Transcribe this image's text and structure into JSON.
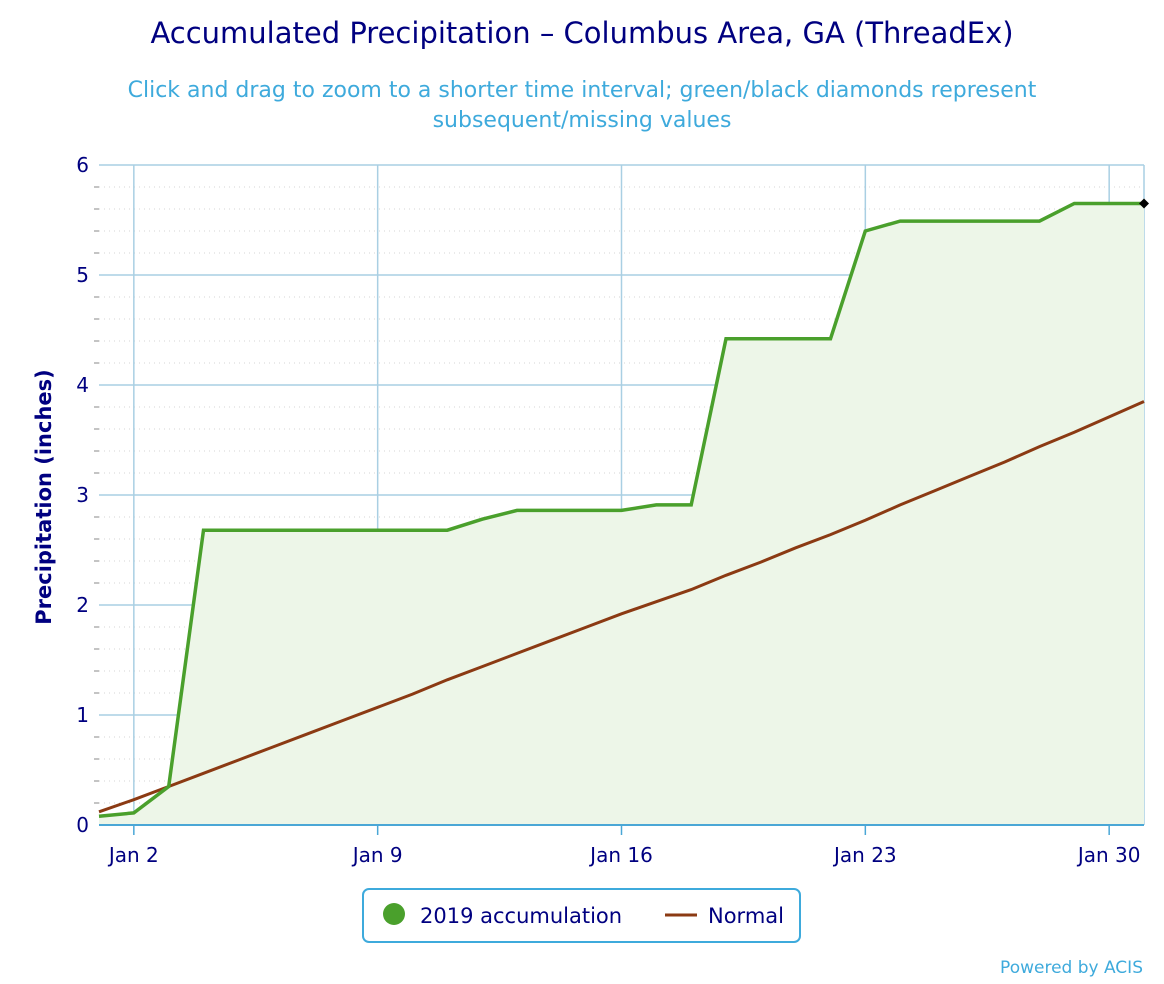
{
  "chart_data": {
    "type": "line",
    "title": "Accumulated Precipitation – Columbus Area, GA (ThreadEx)",
    "subtitle_lines": [
      "Click and drag to zoom to a shorter time interval; green/black diamonds represent",
      "subsequent/missing values"
    ],
    "ylabel": "Precipitation (inches)",
    "xlabel": "",
    "ylim": [
      0,
      6
    ],
    "yticks": [
      0,
      1,
      2,
      3,
      4,
      5,
      6
    ],
    "x_date_range": [
      "2019-01-01",
      "2019-01-31"
    ],
    "xticks": [
      {
        "date": "2019-01-02",
        "label": "Jan 2"
      },
      {
        "date": "2019-01-09",
        "label": "Jan 9"
      },
      {
        "date": "2019-01-16",
        "label": "Jan 16"
      },
      {
        "date": "2019-01-23",
        "label": "Jan 23"
      },
      {
        "date": "2019-01-30",
        "label": "Jan 30"
      }
    ],
    "grid": true,
    "legend_placement": "bottom-center",
    "series": [
      {
        "name": "2019 accumulation",
        "color": "#4aa02c",
        "fill": "#edf6e8",
        "x": [
          "2019-01-01",
          "2019-01-02",
          "2019-01-03",
          "2019-01-04",
          "2019-01-05",
          "2019-01-06",
          "2019-01-07",
          "2019-01-08",
          "2019-01-09",
          "2019-01-10",
          "2019-01-11",
          "2019-01-12",
          "2019-01-13",
          "2019-01-14",
          "2019-01-15",
          "2019-01-16",
          "2019-01-17",
          "2019-01-18",
          "2019-01-19",
          "2019-01-20",
          "2019-01-21",
          "2019-01-22",
          "2019-01-23",
          "2019-01-24",
          "2019-01-25",
          "2019-01-26",
          "2019-01-27",
          "2019-01-28",
          "2019-01-29",
          "2019-01-30",
          "2019-01-31"
        ],
        "values": [
          0.08,
          0.11,
          0.35,
          2.68,
          2.68,
          2.68,
          2.68,
          2.68,
          2.68,
          2.68,
          2.68,
          2.78,
          2.86,
          2.86,
          2.86,
          2.86,
          2.91,
          2.91,
          4.42,
          4.42,
          4.42,
          4.42,
          5.4,
          5.49,
          5.49,
          5.49,
          5.49,
          5.49,
          5.65,
          5.65,
          5.65
        ]
      },
      {
        "name": "Normal",
        "color": "#8b3a13",
        "x": [
          "2019-01-01",
          "2019-01-02",
          "2019-01-03",
          "2019-01-04",
          "2019-01-05",
          "2019-01-06",
          "2019-01-07",
          "2019-01-08",
          "2019-01-09",
          "2019-01-10",
          "2019-01-11",
          "2019-01-12",
          "2019-01-13",
          "2019-01-14",
          "2019-01-15",
          "2019-01-16",
          "2019-01-17",
          "2019-01-18",
          "2019-01-19",
          "2019-01-20",
          "2019-01-21",
          "2019-01-22",
          "2019-01-23",
          "2019-01-24",
          "2019-01-25",
          "2019-01-26",
          "2019-01-27",
          "2019-01-28",
          "2019-01-29",
          "2019-01-30",
          "2019-01-31"
        ],
        "values": [
          0.12,
          0.23,
          0.35,
          0.47,
          0.59,
          0.71,
          0.83,
          0.95,
          1.07,
          1.19,
          1.32,
          1.44,
          1.56,
          1.68,
          1.8,
          1.92,
          2.03,
          2.14,
          2.27,
          2.39,
          2.52,
          2.64,
          2.77,
          2.91,
          3.04,
          3.17,
          3.3,
          3.44,
          3.57,
          3.71,
          3.85
        ]
      }
    ],
    "missing_marker": {
      "date": "2019-01-31",
      "value": 5.65,
      "color": "#000000"
    }
  },
  "legend": {
    "items": [
      {
        "label": "2019 accumulation",
        "color": "#4aa02c"
      },
      {
        "label": "Normal",
        "color": "#8b3a13"
      }
    ]
  },
  "credit": "Powered by ACIS",
  "colors": {
    "title": "#000080",
    "subtitle": "#3eaadc",
    "grid": "#a9cfe3",
    "axis": "#4aa7d6",
    "legend_border": "#3eaadc"
  }
}
